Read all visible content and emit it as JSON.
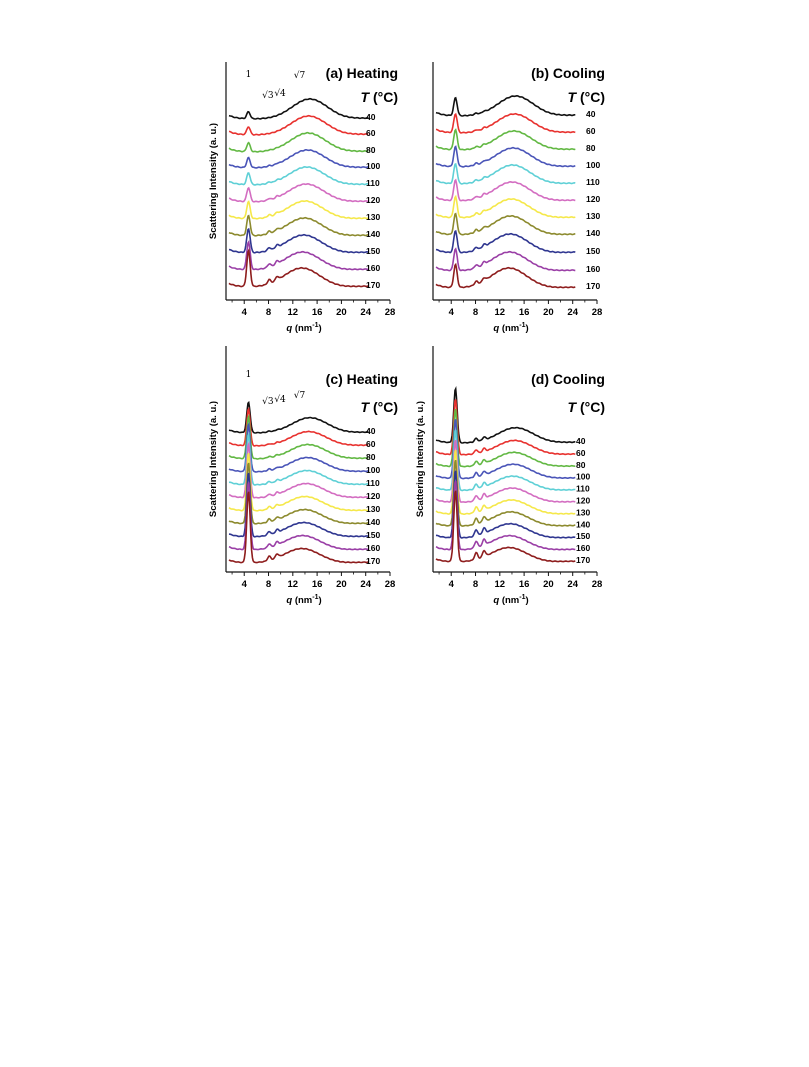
{
  "figure": {
    "ylabel": "Scattering Intensity (a. u.)",
    "xlabel_var": "q",
    "xlabel_unit": "(nm",
    "xlabel_exp": "-1",
    "xlabel_close": ")",
    "legend_title_var": "T",
    "legend_title_unit": " (°C)"
  },
  "series_colors": {
    "40": "#111111",
    "60": "#e8322f",
    "80": "#62b843",
    "100": "#4a55b8",
    "110": "#5fd0d6",
    "120": "#d36dc1",
    "130": "#f5e84a",
    "140": "#8c8a2e",
    "150": "#2f3690",
    "160": "#9a3fa6",
    "170": "#8e1d1d"
  },
  "chart_data": [
    {
      "panel": "a",
      "type": "line",
      "title": "(a) Heating",
      "xlabel": "q (nm-1)",
      "ylabel": "Scattering Intensity (a. u.)",
      "xlim": [
        1,
        28
      ],
      "x_ticks": [
        4,
        8,
        12,
        16,
        20,
        24,
        28
      ],
      "legend_title": "T (°C)",
      "peak_labels": [
        "1",
        "√3",
        "√4",
        "√7"
      ],
      "peak_positions_q": [
        4.7,
        8.1,
        9.4,
        12.5
      ],
      "series": [
        {
          "name": "40",
          "peak1": 0.35,
          "peak2": 0.0,
          "broad": 1.0,
          "broad_center": 14.8
        },
        {
          "name": "60",
          "peak1": 0.4,
          "peak2": 0.0,
          "broad": 0.95,
          "broad_center": 14.6
        },
        {
          "name": "80",
          "peak1": 0.45,
          "peak2": 0.02,
          "broad": 0.95,
          "broad_center": 14.5
        },
        {
          "name": "100",
          "peak1": 0.5,
          "peak2": 0.04,
          "broad": 0.9,
          "broad_center": 14.4
        },
        {
          "name": "110",
          "peak1": 0.6,
          "peak2": 0.06,
          "broad": 0.9,
          "broad_center": 14.3
        },
        {
          "name": "120",
          "peak1": 0.7,
          "peak2": 0.08,
          "broad": 0.9,
          "broad_center": 14.2
        },
        {
          "name": "130",
          "peak1": 0.85,
          "peak2": 0.1,
          "broad": 0.9,
          "broad_center": 14.0
        },
        {
          "name": "140",
          "peak1": 1.0,
          "peak2": 0.12,
          "broad": 0.9,
          "broad_center": 13.9
        },
        {
          "name": "150",
          "peak1": 1.2,
          "peak2": 0.14,
          "broad": 0.9,
          "broad_center": 13.8
        },
        {
          "name": "160",
          "peak1": 1.4,
          "peak2": 0.16,
          "broad": 0.9,
          "broad_center": 13.6
        },
        {
          "name": "170",
          "peak1": 1.8,
          "peak2": 0.2,
          "broad": 0.95,
          "broad_center": 13.5
        }
      ]
    },
    {
      "panel": "b",
      "type": "line",
      "title": "(b) Cooling",
      "xlabel": "q (nm-1)",
      "ylabel": "",
      "xlim": [
        1,
        28
      ],
      "x_ticks": [
        4,
        8,
        12,
        16,
        20,
        24,
        28
      ],
      "legend_title": "T (°C)",
      "peak_labels": [],
      "series": [
        {
          "name": "40",
          "peak1": 0.9,
          "peak2": 0.06,
          "broad": 1.0,
          "broad_center": 14.6
        },
        {
          "name": "60",
          "peak1": 0.95,
          "peak2": 0.07,
          "broad": 0.95,
          "broad_center": 14.4
        },
        {
          "name": "80",
          "peak1": 1.0,
          "peak2": 0.08,
          "broad": 0.95,
          "broad_center": 14.3
        },
        {
          "name": "100",
          "peak1": 1.0,
          "peak2": 0.09,
          "broad": 0.95,
          "broad_center": 14.2
        },
        {
          "name": "110",
          "peak1": 1.0,
          "peak2": 0.1,
          "broad": 0.95,
          "broad_center": 14.1
        },
        {
          "name": "120",
          "peak1": 1.05,
          "peak2": 0.11,
          "broad": 0.95,
          "broad_center": 14.0
        },
        {
          "name": "130",
          "peak1": 1.05,
          "peak2": 0.12,
          "broad": 0.95,
          "broad_center": 13.9
        },
        {
          "name": "140",
          "peak1": 1.05,
          "peak2": 0.13,
          "broad": 0.95,
          "broad_center": 13.8
        },
        {
          "name": "150",
          "peak1": 1.1,
          "peak2": 0.14,
          "broad": 0.95,
          "broad_center": 13.7
        },
        {
          "name": "160",
          "peak1": 1.1,
          "peak2": 0.15,
          "broad": 0.95,
          "broad_center": 13.6
        },
        {
          "name": "170",
          "peak1": 1.15,
          "peak2": 0.16,
          "broad": 1.0,
          "broad_center": 13.5
        }
      ]
    },
    {
      "panel": "c",
      "type": "line",
      "title": "(c) Heating",
      "xlabel": "q (nm-1)",
      "ylabel": "Scattering Intensity (a. u.)",
      "xlim": [
        1,
        28
      ],
      "x_ticks": [
        4,
        8,
        12,
        16,
        20,
        24,
        28
      ],
      "legend_title": "T (°C)",
      "peak_labels": [
        "1",
        "√3",
        "√4",
        "√7"
      ],
      "peak_positions_q": [
        4.7,
        8.1,
        9.4,
        12.5
      ],
      "series": [
        {
          "name": "40",
          "peak1": 1.8,
          "peak2": 0.05,
          "broad": 0.9,
          "broad_center": 14.8
        },
        {
          "name": "60",
          "peak1": 2.2,
          "peak2": 0.06,
          "broad": 0.85,
          "broad_center": 14.6
        },
        {
          "name": "80",
          "peak1": 2.5,
          "peak2": 0.08,
          "broad": 0.85,
          "broad_center": 14.5
        },
        {
          "name": "100",
          "peak1": 2.8,
          "peak2": 0.1,
          "broad": 0.85,
          "broad_center": 14.4
        },
        {
          "name": "110",
          "peak1": 3.0,
          "peak2": 0.12,
          "broad": 0.85,
          "broad_center": 14.3
        },
        {
          "name": "120",
          "peak1": 3.2,
          "peak2": 0.14,
          "broad": 0.85,
          "broad_center": 14.2
        },
        {
          "name": "130",
          "peak1": 3.4,
          "peak2": 0.16,
          "broad": 0.85,
          "broad_center": 14.0
        },
        {
          "name": "140",
          "peak1": 3.6,
          "peak2": 0.18,
          "broad": 0.85,
          "broad_center": 13.9
        },
        {
          "name": "150",
          "peak1": 3.8,
          "peak2": 0.2,
          "broad": 0.85,
          "broad_center": 13.8
        },
        {
          "name": "160",
          "peak1": 4.0,
          "peak2": 0.22,
          "broad": 0.85,
          "broad_center": 13.6
        },
        {
          "name": "170",
          "peak1": 4.2,
          "peak2": 0.25,
          "broad": 0.85,
          "broad_center": 13.5
        }
      ]
    },
    {
      "panel": "d",
      "type": "line",
      "title": "(d) Cooling",
      "xlabel": "q (nm-1)",
      "ylabel": "Scattering Intensity (a. u.)",
      "xlim": [
        1,
        28
      ],
      "x_ticks": [
        4,
        8,
        12,
        16,
        20,
        24,
        28
      ],
      "legend_title": "T (°C)",
      "peak_labels": [],
      "series": [
        {
          "name": "40",
          "peak1": 3.2,
          "peak2": 0.2,
          "broad": 0.9,
          "broad_center": 14.6
        },
        {
          "name": "60",
          "peak1": 3.3,
          "peak2": 0.22,
          "broad": 0.85,
          "broad_center": 14.4
        },
        {
          "name": "80",
          "peak1": 3.4,
          "peak2": 0.24,
          "broad": 0.85,
          "broad_center": 14.3
        },
        {
          "name": "100",
          "peak1": 3.5,
          "peak2": 0.26,
          "broad": 0.85,
          "broad_center": 14.2
        },
        {
          "name": "110",
          "peak1": 3.6,
          "peak2": 0.28,
          "broad": 0.85,
          "broad_center": 14.1
        },
        {
          "name": "120",
          "peak1": 3.7,
          "peak2": 0.3,
          "broad": 0.85,
          "broad_center": 14.0
        },
        {
          "name": "130",
          "peak1": 3.8,
          "peak2": 0.32,
          "broad": 0.85,
          "broad_center": 13.9
        },
        {
          "name": "140",
          "peak1": 3.9,
          "peak2": 0.34,
          "broad": 0.85,
          "broad_center": 13.8
        },
        {
          "name": "150",
          "peak1": 4.0,
          "peak2": 0.36,
          "broad": 0.85,
          "broad_center": 13.7
        },
        {
          "name": "160",
          "peak1": 4.1,
          "peak2": 0.38,
          "broad": 0.85,
          "broad_center": 13.6
        },
        {
          "name": "170",
          "peak1": 4.2,
          "peak2": 0.4,
          "broad": 0.85,
          "broad_center": 13.5
        }
      ]
    }
  ]
}
